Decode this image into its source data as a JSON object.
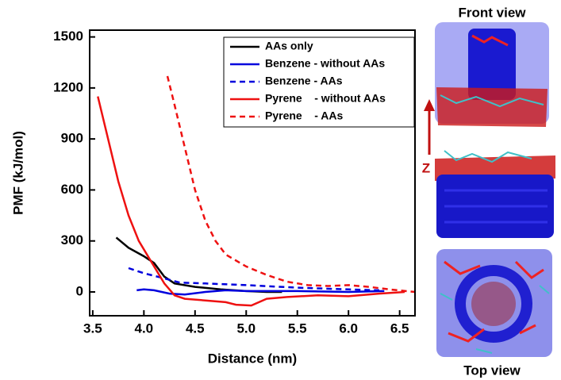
{
  "chart_data": {
    "type": "line",
    "xlabel": "Distance (nm)",
    "ylabel": "PMF (kJ/mol)",
    "xlim": [
      3.47,
      6.65
    ],
    "ylim": [
      -140,
      1540
    ],
    "xticks": [
      3.5,
      {
        "value": 4,
        "label": "4.0"
      },
      4.5,
      {
        "value": 5,
        "label": "5.0"
      },
      5.5,
      {
        "value": 6,
        "label": "6.0"
      },
      6.5
    ],
    "yticks": [
      0,
      300,
      600,
      900,
      1200,
      1500
    ],
    "legend": "upper right",
    "series": [
      {
        "name": "AAs only",
        "color": "#000000",
        "linestyle": "solid",
        "x": [
          3.73,
          3.85,
          4.0,
          4.1,
          4.2,
          4.3,
          4.5,
          4.75,
          5.0,
          5.2,
          5.35
        ],
        "values": [
          320,
          260,
          210,
          170,
          90,
          50,
          30,
          15,
          5,
          0,
          0
        ]
      },
      {
        "name": "Benzene - without AAs",
        "color": "#0000dd",
        "linestyle": "solid",
        "x": [
          3.93,
          4.0,
          4.1,
          4.25,
          4.4,
          4.6,
          4.8,
          5.0,
          5.5,
          6.0,
          6.35
        ],
        "values": [
          10,
          15,
          10,
          -10,
          -15,
          0,
          10,
          5,
          5,
          0,
          5
        ]
      },
      {
        "name": "Benzene - AAs",
        "color": "#0000dd",
        "linestyle": "dashed",
        "x": [
          3.85,
          4.0,
          4.2,
          4.35,
          4.6,
          5.0,
          5.5,
          6.0,
          6.3
        ],
        "values": [
          140,
          110,
          80,
          55,
          50,
          40,
          25,
          15,
          10
        ]
      },
      {
        "name": "Pyrene    - without AAs",
        "color": "#ee1111",
        "linestyle": "solid",
        "x": [
          3.55,
          3.65,
          3.75,
          3.85,
          3.95,
          4.1,
          4.2,
          4.3,
          4.4,
          4.6,
          4.8,
          4.9,
          5.05,
          5.2,
          5.4,
          5.7,
          6.0,
          6.3,
          6.55
        ],
        "values": [
          1150,
          900,
          650,
          450,
          300,
          150,
          50,
          -20,
          -40,
          -50,
          -60,
          -75,
          -80,
          -40,
          -30,
          -20,
          -25,
          -10,
          0
        ]
      },
      {
        "name": "Pyrene    - AAs",
        "color": "#ee1111",
        "linestyle": "dashed",
        "x": [
          4.23,
          4.3,
          4.4,
          4.5,
          4.6,
          4.7,
          4.8,
          5.0,
          5.2,
          5.4,
          5.6,
          5.8,
          6.0,
          6.2,
          6.4,
          6.65
        ],
        "values": [
          1270,
          1100,
          850,
          600,
          420,
          300,
          220,
          150,
          100,
          60,
          40,
          35,
          40,
          30,
          15,
          0
        ]
      }
    ],
    "annotations": [
      "Front view",
      "Z",
      "Top view"
    ]
  }
}
